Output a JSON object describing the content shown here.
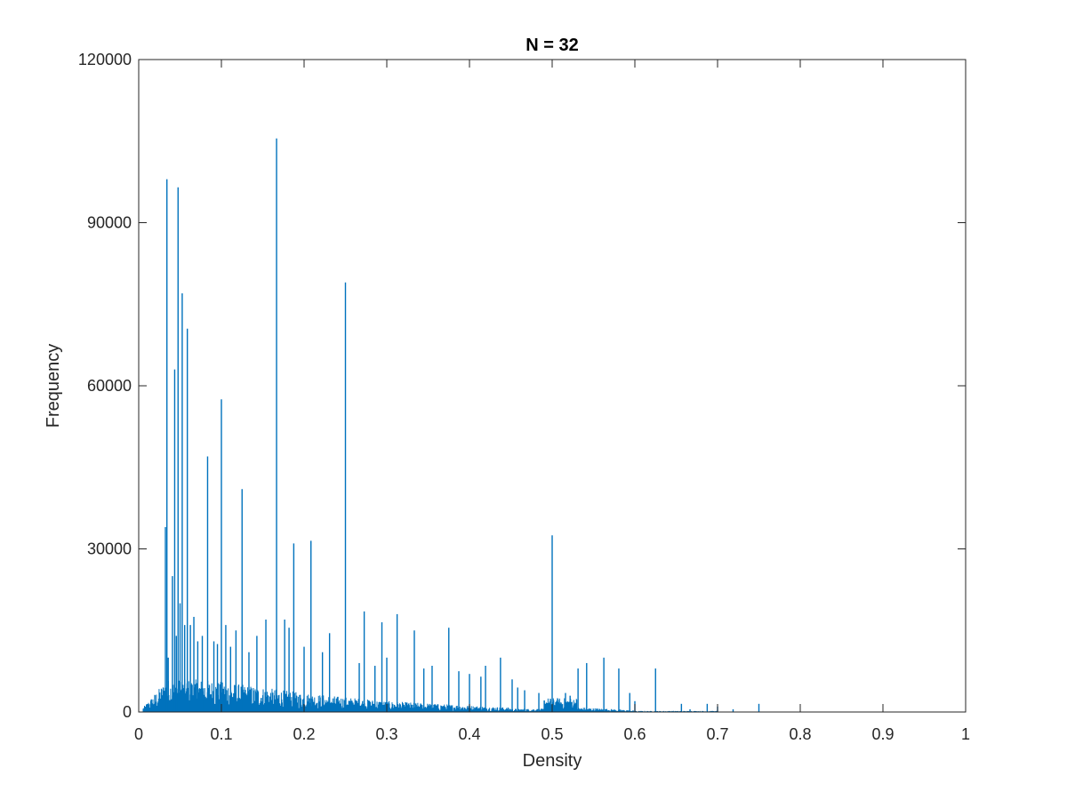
{
  "chart_data": {
    "type": "bar",
    "title": "N = 32",
    "xlabel": "Density",
    "ylabel": "Frequency",
    "xlim": [
      0,
      1
    ],
    "ylim": [
      0,
      120000
    ],
    "x_ticks": [
      "0",
      "0.1",
      "0.2",
      "0.3",
      "0.4",
      "0.5",
      "0.6",
      "0.7",
      "0.8",
      "0.9",
      "1"
    ],
    "y_ticks": [
      "0",
      "30000",
      "60000",
      "90000",
      "120000"
    ],
    "grid": false,
    "legend": "none",
    "bar_color": "#0072BD",
    "series": [
      {
        "x": [
          0.0323,
          0.0341,
          0.0357,
          0.0408,
          0.0435,
          0.0455,
          0.0476,
          0.05,
          0.0526,
          0.0556,
          0.0588,
          0.0625,
          0.0667,
          0.0714,
          0.0769,
          0.0833,
          0.0909,
          0.0952,
          0.1,
          0.1053,
          0.1111,
          0.1176,
          0.125,
          0.1333,
          0.1429,
          0.1538,
          0.1667,
          0.1765,
          0.1818,
          0.1875,
          0.2,
          0.2083,
          0.2222,
          0.2308,
          0.25,
          0.2667,
          0.2727,
          0.2857,
          0.2941,
          0.3,
          0.3125,
          0.3333,
          0.3448,
          0.3548,
          0.375,
          0.3871,
          0.4,
          0.4138,
          0.4194,
          0.4375,
          0.4516,
          0.4583,
          0.4667,
          0.4839,
          0.5,
          0.5161,
          0.5217,
          0.5313,
          0.5417,
          0.5625,
          0.5806,
          0.5938,
          0.6,
          0.625,
          0.6563,
          0.6667,
          0.6875,
          0.7,
          0.7188,
          0.75
        ],
        "values": [
          34000,
          98000,
          10000,
          25000,
          63000,
          14000,
          96500,
          20000,
          77000,
          16000,
          70500,
          16000,
          17500,
          13000,
          14000,
          47000,
          13000,
          12500,
          57500,
          16000,
          12000,
          15000,
          41000,
          11000,
          14000,
          17000,
          105500,
          17000,
          15500,
          31000,
          12000,
          31500,
          11000,
          14500,
          79000,
          9000,
          18500,
          8500,
          16500,
          10000,
          18000,
          15000,
          8000,
          8500,
          15500,
          7500,
          7000,
          6500,
          8500,
          10000,
          6000,
          4500,
          4000,
          3500,
          32500,
          3500,
          3000,
          8000,
          9000,
          10000,
          8000,
          3500,
          2000,
          8000,
          1500,
          500,
          1500,
          1000,
          500,
          1500
        ]
      }
    ]
  }
}
